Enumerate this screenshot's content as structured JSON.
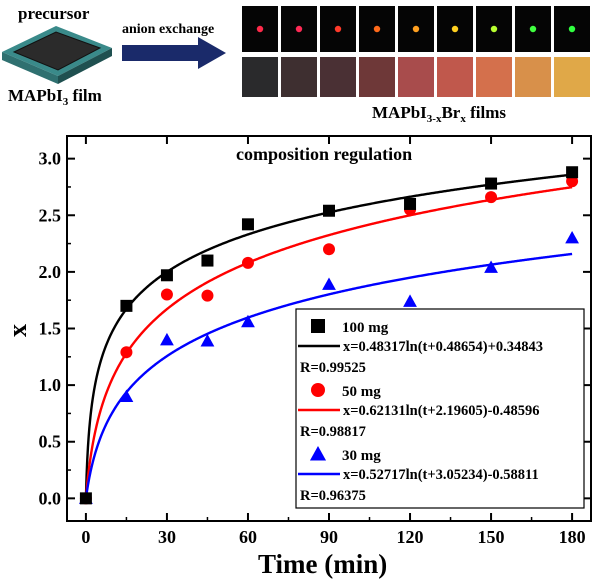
{
  "header": {
    "precursor_label": "precursor",
    "film_label_main": "MAPbI",
    "film_label_sub": "3",
    "film_label_tail": " film",
    "arrow_label": "anion exchange",
    "product_main": "MAPbI",
    "product_sub1": "3-x",
    "product_mid": "Br",
    "product_sub2": "x",
    "product_tail": " films",
    "pl_spot_colors": [
      "#ff2a4a",
      "#ff2a55",
      "#ff3a2a",
      "#ff6a1a",
      "#ffa020",
      "#ffd020",
      "#b8ff30",
      "#40ff40",
      "#30ff40"
    ],
    "film_swatch_colors": [
      "#2a2a2c",
      "#3e2f30",
      "#4a3034",
      "#6e3838",
      "#a84c4c",
      "#c0584c",
      "#d4704c",
      "#d8904a",
      "#e0a848"
    ]
  },
  "chart_data": {
    "type": "scatter",
    "title": "composition regulation",
    "xlabel": "Time (min)",
    "ylabel": "x",
    "xlim": [
      -7,
      187
    ],
    "ylim": [
      -0.2,
      3.2
    ],
    "xticks": [
      0,
      30,
      60,
      90,
      120,
      150,
      180
    ],
    "yticks": [
      0.0,
      0.5,
      1.0,
      1.5,
      2.0,
      2.5,
      3.0
    ],
    "series": [
      {
        "name": "100 mg",
        "marker": "square",
        "color": "#000000",
        "x": [
          0,
          15,
          30,
          45,
          60,
          90,
          120,
          150,
          180
        ],
        "y": [
          0.0,
          1.7,
          1.97,
          2.1,
          2.42,
          2.54,
          2.6,
          2.78,
          2.88
        ],
        "fit": {
          "label": "x=0.48317ln(t+0.48654)+0.34843",
          "a": 0.48317,
          "b": 0.48654,
          "c": 0.34843,
          "r_label": "R=0.99525"
        }
      },
      {
        "name": "50 mg",
        "marker": "circle",
        "color": "#ff0000",
        "x": [
          0,
          15,
          30,
          45,
          60,
          90,
          120,
          150,
          180
        ],
        "y": [
          0.0,
          1.29,
          1.8,
          1.79,
          2.08,
          2.2,
          2.55,
          2.66,
          2.8
        ],
        "fit": {
          "label": "x=0.62131ln(t+2.19605)-0.48596",
          "a": 0.62131,
          "b": 2.19605,
          "c": -0.48596,
          "r_label": "R=0.98817"
        }
      },
      {
        "name": "30 mg",
        "marker": "triangle",
        "color": "#0000ff",
        "x": [
          0,
          15,
          30,
          45,
          60,
          90,
          120,
          150,
          180
        ],
        "y": [
          0.0,
          0.9,
          1.4,
          1.39,
          1.56,
          1.89,
          1.74,
          2.04,
          2.3
        ],
        "fit": {
          "label": "x=0.52717ln(t+3.05234)-0.58811",
          "a": 0.52717,
          "b": 3.05234,
          "c": -0.58811,
          "r_label": "R=0.96375"
        }
      }
    ]
  }
}
